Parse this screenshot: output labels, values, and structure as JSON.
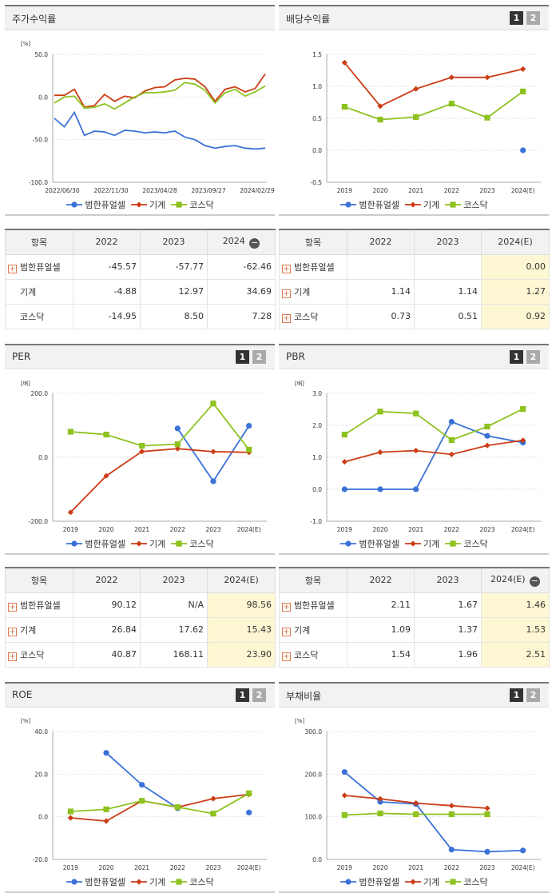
{
  "colors": {
    "bhf": "#3a72d7",
    "mach": "#cc3d16",
    "kosdaq": "#8dc21f"
  },
  "legend": [
    {
      "label": "범한퓨얼셀",
      "marker": "circle",
      "color": "#3a72d7"
    },
    {
      "label": "기계",
      "marker": "diamond",
      "color": "#cc3d16"
    },
    {
      "label": "코스닥",
      "marker": "square",
      "color": "#8dc21f"
    }
  ],
  "panels": {
    "stock": {
      "title": "주가수익률",
      "unit": "[%]"
    },
    "dividend": {
      "title": "배당수익률",
      "page1": "1",
      "page2": "2"
    },
    "per": {
      "title": "PER",
      "unit": "[배]",
      "page1": "1",
      "page2": "2"
    },
    "pbr": {
      "title": "PBR",
      "unit": "[배]",
      "page1": "1",
      "page2": "2"
    },
    "roe": {
      "title": "ROE",
      "unit": "[%]",
      "page1": "1",
      "page2": "2"
    },
    "debt": {
      "title": "부채비율",
      "unit": "[%]",
      "page1": "1",
      "page2": "2"
    }
  },
  "tables": {
    "stock": {
      "headers": [
        "항목",
        "2022",
        "2023",
        "2024"
      ],
      "rows": [
        {
          "name": "범한퓨얼셀",
          "plus": true,
          "v1": "-45.57",
          "v2": "-57.77",
          "v3": "-62.46"
        },
        {
          "name": "기계",
          "plus": false,
          "v1": "-4.88",
          "v2": "12.97",
          "v3": "34.69"
        },
        {
          "name": "코스닥",
          "plus": false,
          "v1": "-14.95",
          "v2": "8.50",
          "v3": "7.28"
        }
      ]
    },
    "dividend": {
      "headers": [
        "항목",
        "2022",
        "2023",
        "2024(E)"
      ],
      "rows": [
        {
          "name": "범한퓨얼셀",
          "plus": true,
          "v1": "",
          "v2": "",
          "v3": "0.00"
        },
        {
          "name": "기계",
          "plus": true,
          "v1": "1.14",
          "v2": "1.14",
          "v3": "1.27"
        },
        {
          "name": "코스닥",
          "plus": true,
          "v1": "0.73",
          "v2": "0.51",
          "v3": "0.92"
        }
      ]
    },
    "per": {
      "headers": [
        "항목",
        "2022",
        "2023",
        "2024(E)"
      ],
      "rows": [
        {
          "name": "범한퓨얼셀",
          "plus": true,
          "v1": "90.12",
          "v2": "N/A",
          "v3": "98.56"
        },
        {
          "name": "기계",
          "plus": true,
          "v1": "26.84",
          "v2": "17.62",
          "v3": "15.43"
        },
        {
          "name": "코스닥",
          "plus": true,
          "v1": "40.87",
          "v2": "168.11",
          "v3": "23.90"
        }
      ]
    },
    "pbr": {
      "headers": [
        "항목",
        "2022",
        "2023",
        "2024(E)"
      ],
      "rows": [
        {
          "name": "범한퓨얼셀",
          "plus": true,
          "v1": "2.11",
          "v2": "1.67",
          "v3": "1.46"
        },
        {
          "name": "기계",
          "plus": true,
          "v1": "1.09",
          "v2": "1.37",
          "v3": "1.53"
        },
        {
          "name": "코스닥",
          "plus": true,
          "v1": "1.54",
          "v2": "1.96",
          "v3": "2.51"
        }
      ]
    }
  },
  "chart_data": [
    {
      "id": "stock",
      "type": "line",
      "xticks": [
        "2022/06/30",
        "2022/11/30",
        "2023/04/28",
        "2023/09/27",
        "2024/02/29"
      ],
      "yticks": [
        "50.0",
        "0.0",
        "-50.0",
        "-100.0"
      ],
      "ylim": [
        -100,
        50
      ],
      "series": [
        {
          "name": "범한퓨얼셀",
          "values": [
            -25,
            -35,
            -18,
            -45,
            -40,
            -41,
            -45,
            -39,
            -40,
            -42,
            -41,
            -42,
            -40,
            -47,
            -50,
            -57,
            -60,
            -58,
            -57,
            -60,
            -61,
            -60
          ]
        },
        {
          "name": "기계",
          "values": [
            2,
            2,
            9,
            -12,
            -10,
            3,
            -5,
            1,
            -1,
            7,
            11,
            12,
            20,
            22,
            21,
            12,
            -5,
            9,
            12,
            6,
            10,
            27
          ]
        },
        {
          "name": "코스닥",
          "values": [
            -7,
            0,
            1,
            -13,
            -12,
            -8,
            -14,
            -7,
            0,
            5,
            5,
            6,
            8,
            17,
            15,
            8,
            -7,
            5,
            9,
            1,
            6,
            13
          ]
        }
      ]
    },
    {
      "id": "dividend",
      "type": "line",
      "categories": [
        "2019",
        "2020",
        "2021",
        "2022",
        "2023",
        "2024(E)"
      ],
      "yticks": [
        "1.5",
        "1.0",
        "0.5",
        "0.0",
        "-0.5"
      ],
      "ylim": [
        -0.5,
        1.5
      ],
      "series": [
        {
          "name": "범한퓨얼셀",
          "values": [
            null,
            null,
            null,
            null,
            null,
            0.0
          ]
        },
        {
          "name": "기계",
          "values": [
            1.37,
            0.69,
            0.96,
            1.14,
            1.14,
            1.27
          ]
        },
        {
          "name": "코스닥",
          "values": [
            0.68,
            0.48,
            0.52,
            0.73,
            0.51,
            0.92
          ]
        }
      ]
    },
    {
      "id": "per",
      "type": "line",
      "categories": [
        "2019",
        "2020",
        "2021",
        "2022",
        "2023",
        "2024(E)"
      ],
      "yticks": [
        "200.0",
        "0.0",
        "-200.0"
      ],
      "ylim": [
        -200,
        200
      ],
      "series": [
        {
          "name": "범한퓨얼셀",
          "values": [
            null,
            null,
            null,
            90.12,
            -75,
            98.56
          ]
        },
        {
          "name": "기계",
          "values": [
            -172,
            -58,
            18,
            26.84,
            17.62,
            15.43
          ]
        },
        {
          "name": "코스닥",
          "values": [
            80,
            71,
            36,
            40.87,
            168.11,
            23.9
          ]
        }
      ]
    },
    {
      "id": "pbr",
      "type": "line",
      "categories": [
        "2019",
        "2020",
        "2021",
        "2022",
        "2023",
        "2024(E)"
      ],
      "yticks": [
        "3.0",
        "2.0",
        "1.0",
        "0.0",
        "-1.0"
      ],
      "ylim": [
        -1,
        3
      ],
      "series": [
        {
          "name": "범한퓨얼셀",
          "values": [
            0,
            0,
            0,
            2.11,
            1.67,
            1.46
          ]
        },
        {
          "name": "기계",
          "values": [
            0.86,
            1.16,
            1.21,
            1.09,
            1.37,
            1.53
          ]
        },
        {
          "name": "코스닥",
          "values": [
            1.71,
            2.43,
            2.37,
            1.54,
            1.96,
            2.51
          ]
        }
      ]
    },
    {
      "id": "roe",
      "type": "line",
      "categories": [
        "2019",
        "2020",
        "2021",
        "2022",
        "2023",
        "2024(E)"
      ],
      "yticks": [
        "40.0",
        "20.0",
        "0.0",
        "-20.0"
      ],
      "ylim": [
        -20,
        40
      ],
      "series": [
        {
          "name": "범한퓨얼셀",
          "values": [
            null,
            30,
            15,
            4,
            null,
            2
          ]
        },
        {
          "name": "기계",
          "values": [
            -0.5,
            -2,
            7.5,
            4.5,
            8.5,
            10.5
          ]
        },
        {
          "name": "코스닥",
          "values": [
            2.5,
            3.5,
            7.5,
            4.5,
            1.5,
            11
          ]
        }
      ]
    },
    {
      "id": "debt",
      "type": "line",
      "categories": [
        "2019",
        "2020",
        "2021",
        "2022",
        "2023",
        "2024(E)"
      ],
      "yticks": [
        "300.0",
        "200.0",
        "100.0",
        "0.0"
      ],
      "ylim": [
        0,
        300
      ],
      "series": [
        {
          "name": "범한퓨얼셀",
          "values": [
            205,
            135,
            130,
            23,
            18,
            21
          ]
        },
        {
          "name": "기계",
          "values": [
            150,
            142,
            132,
            126,
            120,
            null
          ]
        },
        {
          "name": "코스닥",
          "values": [
            104,
            108,
            106,
            106,
            106,
            null
          ]
        }
      ]
    }
  ]
}
